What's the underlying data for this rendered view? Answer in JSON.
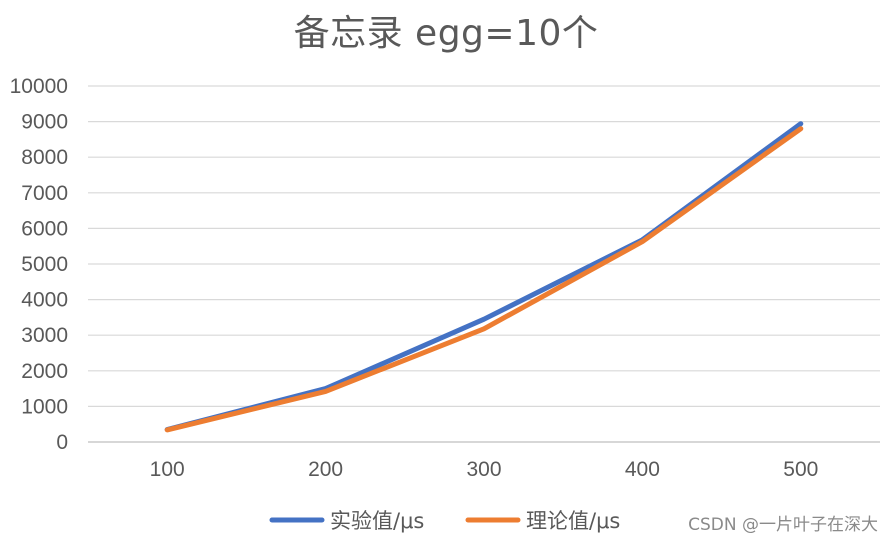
{
  "chart_data": {
    "type": "line",
    "title": "备忘录 egg=10个",
    "xlabel": "",
    "ylabel": "",
    "categories": [
      "100",
      "200",
      "300",
      "400",
      "500"
    ],
    "series": [
      {
        "name": "实验值/μs",
        "color": "#4472C4",
        "values": [
          350,
          1500,
          3450,
          5680,
          8940
        ]
      },
      {
        "name": "理论值/μs",
        "color": "#ED7D31",
        "values": [
          340,
          1420,
          3180,
          5630,
          8800
        ]
      }
    ],
    "ylim": [
      0,
      10000
    ],
    "yticks": [
      0,
      1000,
      2000,
      3000,
      4000,
      5000,
      6000,
      7000,
      8000,
      9000,
      10000
    ],
    "grid": true,
    "legend_position": "bottom"
  },
  "watermark": "CSDN @一片叶子在深大"
}
